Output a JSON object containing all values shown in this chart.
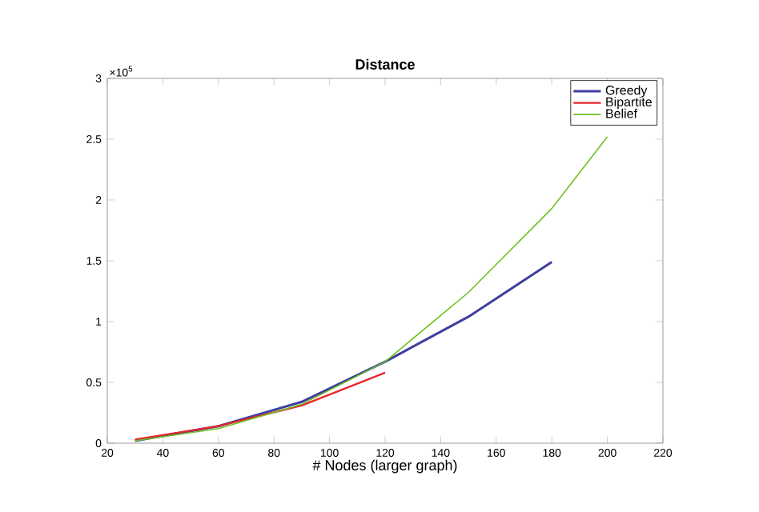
{
  "chart_data": {
    "type": "line",
    "title": "Distance",
    "xlabel": "# Nodes (larger graph)",
    "annotations": [
      "×10$^{5}$"
    ],
    "xlim": [
      20,
      220
    ],
    "xticks": [
      20,
      40,
      60,
      80,
      100,
      120,
      140,
      160,
      180,
      200,
      220
    ],
    "ylim": [
      0,
      3
    ],
    "yticks": [
      0,
      0.5,
      1,
      1.5,
      2,
      2.5,
      3
    ],
    "legend": "top right",
    "grid": false,
    "series": [
      {
        "name": "Greedy",
        "color": "#3f3f9f",
        "x": [
          30,
          60,
          90,
          120,
          150,
          180
        ],
        "values": [
          0.02,
          0.14,
          0.34,
          0.67,
          1.04,
          1.49
        ]
      },
      {
        "name": "Bipartite",
        "color": "#e8262c",
        "x": [
          30,
          60,
          90,
          120
        ],
        "values": [
          0.03,
          0.14,
          0.31,
          0.58
        ]
      },
      {
        "name": "Belief",
        "color": "#6dc21e",
        "x": [
          30,
          60,
          90,
          120,
          150,
          180,
          200
        ],
        "values": [
          0.02,
          0.12,
          0.32,
          0.67,
          1.24,
          1.93,
          2.52
        ]
      }
    ]
  }
}
